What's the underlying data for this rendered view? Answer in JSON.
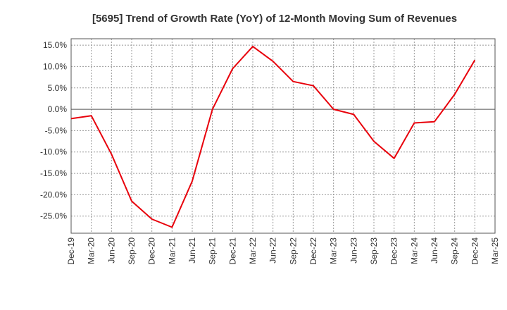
{
  "chart_data": {
    "type": "line",
    "title": "[5695]  Trend of Growth Rate (YoY) of 12-Month Moving Sum of Revenues",
    "xlabel": "",
    "ylabel": "",
    "x_ticks": [
      "Dec-19",
      "Mar-20",
      "Jun-20",
      "Sep-20",
      "Dec-20",
      "Mar-21",
      "Jun-21",
      "Sep-21",
      "Dec-21",
      "Mar-22",
      "Jun-22",
      "Sep-22",
      "Dec-22",
      "Mar-23",
      "Jun-23",
      "Sep-23",
      "Dec-23",
      "Mar-24",
      "Jun-24",
      "Sep-24",
      "Dec-24",
      "Mar-25"
    ],
    "y_ticks": [
      15.0,
      10.0,
      5.0,
      0.0,
      -5.0,
      -10.0,
      -15.0,
      -20.0,
      -25.0
    ],
    "y_tick_labels": [
      "15.0%",
      "10.0%",
      "5.0%",
      "0.0%",
      "-5.0%",
      "-10.0%",
      "-15.0%",
      "-20.0%",
      "-25.0%"
    ],
    "ylim": [
      -29.0,
      16.5
    ],
    "grid": true,
    "series": [
      {
        "color": "#e8000b",
        "x": [
          "Dec-19",
          "Mar-20",
          "Jun-20",
          "Sep-20",
          "Dec-20",
          "Mar-21",
          "Jun-21",
          "Sep-21",
          "Dec-21",
          "Mar-22",
          "Jun-22",
          "Sep-22",
          "Dec-22",
          "Mar-23",
          "Jun-23",
          "Sep-23",
          "Dec-23",
          "Mar-24",
          "Jun-24",
          "Sep-24",
          "Dec-24"
        ],
        "values": [
          -2.2,
          -1.5,
          -10.5,
          -21.5,
          -25.7,
          -27.6,
          -16.8,
          0.0,
          9.5,
          14.7,
          11.2,
          6.5,
          5.5,
          0.0,
          -1.2,
          -7.5,
          -11.5,
          -3.2,
          -2.9,
          3.5,
          11.5
        ]
      }
    ]
  }
}
